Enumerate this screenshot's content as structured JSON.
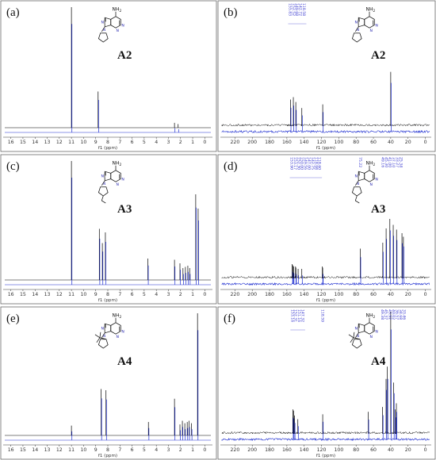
{
  "chart_data": [
    {
      "type": "line",
      "panel": "(a)",
      "compound": "A2",
      "nh2": "NH",
      "nh2_sub": "2",
      "atoms": [
        "N",
        "N",
        "N",
        "N"
      ],
      "xlabel": "f1 (ppm)",
      "xlim": [
        16.5,
        -0.5
      ],
      "xticks": [
        "16",
        "15",
        "14",
        "13",
        "12",
        "11",
        "10",
        "9",
        "8",
        "7",
        "6",
        "5",
        "4",
        "3",
        "2",
        "1",
        "0"
      ],
      "peaks": [
        {
          "ppm": 11.0,
          "height": 1.0,
          "top": "black"
        },
        {
          "ppm": 8.8,
          "height": 0.3,
          "top": "black"
        },
        {
          "ppm": 2.5,
          "height": 0.04,
          "top": "black"
        },
        {
          "ppm": 2.2,
          "height": 0.03,
          "top": "blue"
        }
      ],
      "shift_labels": []
    },
    {
      "type": "line",
      "panel": "(b)",
      "compound": "A2",
      "nh2": "NH",
      "nh2_sub": "2",
      "atoms": [
        "N",
        "N",
        "N",
        "N"
      ],
      "xlabel": "f1 (ppm)",
      "xlim": [
        235,
        -5
      ],
      "xticks": [
        "220",
        "200",
        "180",
        "160",
        "140",
        "120",
        "100",
        "80",
        "60",
        "40",
        "20",
        "0"
      ],
      "peaks": [
        {
          "ppm": 155.83,
          "height": 0.22
        },
        {
          "ppm": 152.52,
          "height": 0.24
        },
        {
          "ppm": 149.68,
          "height": 0.2
        },
        {
          "ppm": 142.72,
          "height": 0.15
        },
        {
          "ppm": 118.58,
          "height": 0.18
        },
        {
          "ppm": 40.0,
          "height": 0.45
        }
      ],
      "shift_labels": [
        "155.83",
        "152.52",
        "149.68",
        "142.72",
        "118.58"
      ]
    },
    {
      "type": "line",
      "panel": "(c)",
      "compound": "A3",
      "nh2": "NH",
      "nh2_sub": "2",
      "atoms": [
        "N",
        "N",
        "N",
        "N"
      ],
      "xlabel": "f1 (ppm)",
      "xlim": [
        16.5,
        -0.5
      ],
      "xticks": [
        "16",
        "15",
        "14",
        "13",
        "12",
        "11",
        "10",
        "9",
        "8",
        "7",
        "6",
        "5",
        "4",
        "3",
        "2",
        "1",
        "0"
      ],
      "peaks": [
        {
          "ppm": 11.0,
          "height": 1.0,
          "top": "black"
        },
        {
          "ppm": 8.7,
          "height": 0.43
        },
        {
          "ppm": 8.45,
          "height": 0.31
        },
        {
          "ppm": 8.2,
          "height": 0.4
        },
        {
          "ppm": 4.7,
          "height": 0.18
        },
        {
          "ppm": 2.5,
          "height": 0.17
        },
        {
          "ppm": 2.05,
          "height": 0.14
        },
        {
          "ppm": 1.8,
          "height": 0.1
        },
        {
          "ppm": 1.6,
          "height": 0.11
        },
        {
          "ppm": 1.4,
          "height": 0.12
        },
        {
          "ppm": 1.25,
          "height": 0.1
        },
        {
          "ppm": 0.75,
          "height": 0.72
        },
        {
          "ppm": 0.55,
          "height": 0.6
        }
      ],
      "shift_labels": []
    },
    {
      "type": "line",
      "panel": "(d)",
      "compound": "A3",
      "nh2": "NH",
      "nh2_sub": "2",
      "atoms": [
        "N",
        "N",
        "N",
        "N"
      ],
      "xlabel": "f1 (ppm)",
      "xlim": [
        235,
        -5
      ],
      "xticks": [
        "220",
        "200",
        "180",
        "160",
        "140",
        "120",
        "100",
        "80",
        "60",
        "40",
        "20",
        "0"
      ],
      "peaks": [
        {
          "ppm": 153.9,
          "height": 0.12
        },
        {
          "ppm": 153.17,
          "height": 0.11
        },
        {
          "ppm": 152.3,
          "height": 0.1
        },
        {
          "ppm": 150.0,
          "height": 0.1
        },
        {
          "ppm": 149.56,
          "height": 0.09
        },
        {
          "ppm": 147.0,
          "height": 0.08
        },
        {
          "ppm": 142.75,
          "height": 0.08
        },
        {
          "ppm": 119.0,
          "height": 0.1
        },
        {
          "ppm": 118.6,
          "height": 0.09
        },
        {
          "ppm": 75.22,
          "height": 0.25
        },
        {
          "ppm": 49.16,
          "height": 0.3
        },
        {
          "ppm": 45.3,
          "height": 0.42
        },
        {
          "ppm": 41.0,
          "height": 0.5
        },
        {
          "ppm": 37.1,
          "height": 0.45
        },
        {
          "ppm": 33.27,
          "height": 0.41
        },
        {
          "ppm": 27.0,
          "height": 0.38
        },
        {
          "ppm": 25.34,
          "height": 0.35
        }
      ],
      "shift_labels": [
        "153.90",
        "153.17",
        "152.30",
        "150.00",
        "149.56",
        "147.00",
        "142.75",
        "118.98",
        "118.60"
      ],
      "shift_labels_mid": [
        "75.22"
      ],
      "shift_labels_right": [
        "49.16",
        "45.30",
        "41.00",
        "37.10",
        "33.27",
        "25.34"
      ]
    },
    {
      "type": "line",
      "panel": "(e)",
      "compound": "A4",
      "nh2": "NH",
      "nh2_sub": "2",
      "atoms": [
        "N",
        "N",
        "N",
        "N"
      ],
      "xlabel": "f1 (ppm)",
      "xlim": [
        16.5,
        -0.5
      ],
      "xticks": [
        "16",
        "15",
        "14",
        "13",
        "12",
        "11",
        "10",
        "9",
        "8",
        "7",
        "6",
        "5",
        "4",
        "3",
        "2",
        "1",
        "0"
      ],
      "peaks": [
        {
          "ppm": 11.0,
          "height": 0.08
        },
        {
          "ppm": 8.55,
          "height": 0.38
        },
        {
          "ppm": 8.15,
          "height": 0.37
        },
        {
          "ppm": 4.65,
          "height": 0.11
        },
        {
          "ppm": 2.5,
          "height": 0.3
        },
        {
          "ppm": 2.05,
          "height": 0.09
        },
        {
          "ppm": 1.85,
          "height": 0.12
        },
        {
          "ppm": 1.65,
          "height": 0.1
        },
        {
          "ppm": 1.45,
          "height": 0.11
        },
        {
          "ppm": 1.3,
          "height": 0.12
        },
        {
          "ppm": 1.1,
          "height": 0.1
        },
        {
          "ppm": 0.6,
          "height": 1.0,
          "top": "black"
        }
      ],
      "shift_labels": []
    },
    {
      "type": "line",
      "panel": "(f)",
      "compound": "A4",
      "nh2": "NH",
      "nh2_sub": "2",
      "atoms": [
        "N",
        "N",
        "N",
        "N"
      ],
      "xlabel": "f1 (ppm)",
      "xlim": [
        235,
        -5
      ],
      "xticks": [
        "220",
        "200",
        "180",
        "160",
        "140",
        "120",
        "100",
        "80",
        "60",
        "40",
        "20",
        "0"
      ],
      "peaks": [
        {
          "ppm": 153.16,
          "height": 0.2
        },
        {
          "ppm": 152.31,
          "height": 0.19
        },
        {
          "ppm": 151.16,
          "height": 0.15
        },
        {
          "ppm": 147.32,
          "height": 0.12
        },
        {
          "ppm": 118.59,
          "height": 0.16
        },
        {
          "ppm": 66.0,
          "height": 0.18
        },
        {
          "ppm": 49.38,
          "height": 0.22
        },
        {
          "ppm": 45.37,
          "height": 0.45
        },
        {
          "ppm": 43.92,
          "height": 0.55
        },
        {
          "ppm": 40.0,
          "height": 1.0,
          "top": "black"
        },
        {
          "ppm": 36.57,
          "height": 0.42
        },
        {
          "ppm": 34.68,
          "height": 0.2
        },
        {
          "ppm": 33.46,
          "height": 0.25
        }
      ],
      "shift_labels": [
        "153.16",
        "152.31",
        "151.16",
        "147.32"
      ],
      "shift_labels_mid": [
        "118.59"
      ],
      "shift_labels_right": [
        "49.38",
        "45.37",
        "43.92",
        "40.02",
        "36.57",
        "34.68",
        "33.46"
      ]
    }
  ]
}
